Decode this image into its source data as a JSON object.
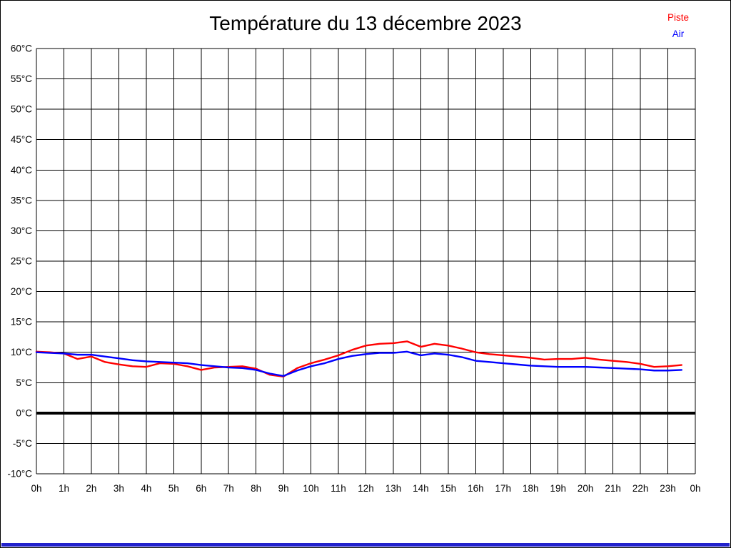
{
  "page": {
    "title": "Température du 13 décembre 2023"
  },
  "legend": {
    "items": [
      {
        "label": "Piste",
        "color": "#ff0000"
      },
      {
        "label": "Air",
        "color": "#0000ff"
      }
    ]
  },
  "footer": {
    "bar_color": "#2222cc"
  },
  "chart_data": {
    "type": "line",
    "title": "Température du 13 décembre 2023",
    "xlabel": "",
    "ylabel": "",
    "xlim": [
      0,
      24
    ],
    "ylim": [
      -10,
      60
    ],
    "grid": true,
    "zero_line": true,
    "legend_position": "top-right",
    "x_hours": [
      0,
      0.5,
      1,
      1.5,
      2,
      2.5,
      3,
      3.5,
      4,
      4.5,
      5,
      5.5,
      6,
      6.5,
      7,
      7.5,
      8,
      8.5,
      9,
      9.5,
      10,
      10.5,
      11,
      11.5,
      12,
      12.5,
      13,
      13.5,
      14,
      14.5,
      15,
      15.5,
      16,
      16.5,
      17,
      17.5,
      18,
      18.5,
      19,
      19.5,
      20,
      20.5,
      21,
      21.5,
      22,
      22.5,
      23,
      23.5
    ],
    "series": [
      {
        "name": "Piste",
        "color": "#ff0000",
        "values": [
          10.1,
          10.0,
          9.8,
          8.9,
          9.3,
          8.4,
          8.0,
          7.7,
          7.6,
          8.2,
          8.1,
          7.7,
          7.1,
          7.5,
          7.6,
          7.7,
          7.3,
          6.3,
          6.0,
          7.4,
          8.2,
          8.8,
          9.5,
          10.4,
          11.1,
          11.4,
          11.5,
          11.8,
          10.9,
          11.4,
          11.1,
          10.6,
          10.0,
          9.7,
          9.5,
          9.3,
          9.1,
          8.8,
          8.9,
          8.9,
          9.1,
          8.8,
          8.6,
          8.4,
          8.1,
          7.6,
          7.7,
          7.9
        ]
      },
      {
        "name": "Air",
        "color": "#0000ff",
        "values": [
          10.0,
          9.9,
          9.8,
          9.6,
          9.6,
          9.3,
          9.0,
          8.7,
          8.5,
          8.4,
          8.3,
          8.2,
          7.9,
          7.7,
          7.5,
          7.4,
          7.1,
          6.5,
          6.1,
          7.0,
          7.7,
          8.2,
          8.9,
          9.4,
          9.7,
          9.9,
          9.9,
          10.1,
          9.5,
          9.8,
          9.6,
          9.2,
          8.6,
          8.4,
          8.2,
          8.0,
          7.8,
          7.7,
          7.6,
          7.6,
          7.6,
          7.5,
          7.4,
          7.3,
          7.2,
          7.0,
          7.0,
          7.1
        ]
      }
    ],
    "xticks": {
      "positions": [
        0,
        1,
        2,
        3,
        4,
        5,
        6,
        7,
        8,
        9,
        10,
        11,
        12,
        13,
        14,
        15,
        16,
        17,
        18,
        19,
        20,
        21,
        22,
        23,
        24
      ],
      "labels": [
        "0h",
        "1h",
        "2h",
        "3h",
        "4h",
        "5h",
        "6h",
        "7h",
        "8h",
        "9h",
        "10h",
        "11h",
        "12h",
        "13h",
        "14h",
        "15h",
        "16h",
        "17h",
        "18h",
        "19h",
        "20h",
        "21h",
        "22h",
        "23h",
        "0h"
      ]
    },
    "yticks": {
      "values": [
        60,
        55,
        50,
        45,
        40,
        35,
        30,
        25,
        20,
        15,
        10,
        5,
        0,
        -5,
        -10
      ],
      "labels": [
        "60°C",
        "55°C",
        "50°C",
        "45°C",
        "40°C",
        "35°C",
        "30°C",
        "25°C",
        "20°C",
        "15°C",
        "10°C",
        "5°C",
        "0°C",
        "-5°C",
        "-10°C"
      ]
    }
  }
}
